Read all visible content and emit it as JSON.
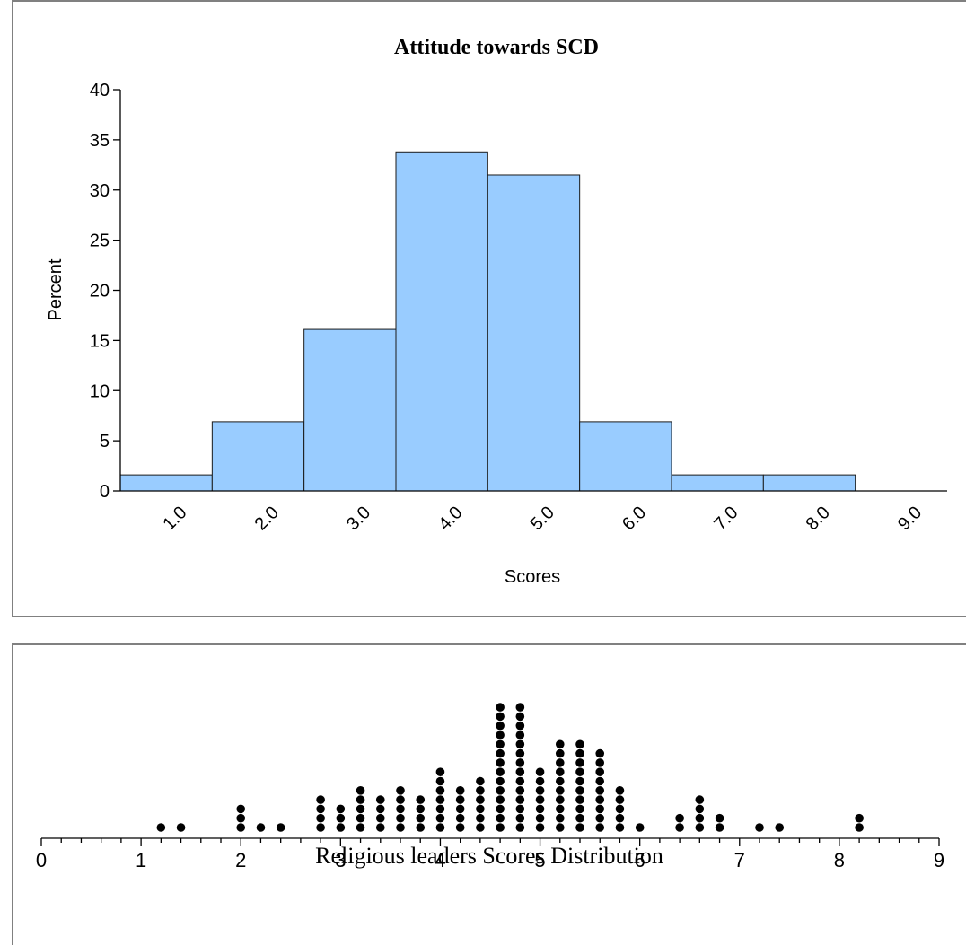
{
  "chart_data": [
    {
      "type": "bar",
      "title": "Attitude towards SCD",
      "xlabel": "Scores",
      "ylabel": "Percent",
      "ylim": [
        0,
        40
      ],
      "yticks": [
        "0",
        "5",
        "10",
        "15",
        "20",
        "25",
        "30",
        "35",
        "40"
      ],
      "categories": [
        "1.0",
        "2.0",
        "3.0",
        "4.0",
        "5.0",
        "6.0",
        "7.0",
        "8.0",
        "9.0"
      ],
      "values": [
        1.6,
        6.9,
        16.1,
        33.8,
        31.5,
        6.9,
        1.6,
        1.6,
        0
      ],
      "grid": false,
      "bar_color": "#99ccff"
    },
    {
      "type": "scatter",
      "subtype": "dot-plot",
      "xlabel": "Religious leaders Scores Distribution",
      "xlim": [
        0,
        9
      ],
      "xticks": [
        "0",
        "1",
        "2",
        "3",
        "4",
        "5",
        "6",
        "7",
        "8",
        "9"
      ],
      "points": [
        {
          "x": 1.2,
          "count": 1
        },
        {
          "x": 1.4,
          "count": 1
        },
        {
          "x": 2.0,
          "count": 3
        },
        {
          "x": 2.2,
          "count": 1
        },
        {
          "x": 2.4,
          "count": 1
        },
        {
          "x": 2.8,
          "count": 4
        },
        {
          "x": 3.0,
          "count": 3
        },
        {
          "x": 3.2,
          "count": 5
        },
        {
          "x": 3.4,
          "count": 4
        },
        {
          "x": 3.6,
          "count": 5
        },
        {
          "x": 3.8,
          "count": 4
        },
        {
          "x": 4.0,
          "count": 7
        },
        {
          "x": 4.2,
          "count": 5
        },
        {
          "x": 4.4,
          "count": 6
        },
        {
          "x": 4.6,
          "count": 14
        },
        {
          "x": 4.8,
          "count": 14
        },
        {
          "x": 5.0,
          "count": 7
        },
        {
          "x": 5.2,
          "count": 10
        },
        {
          "x": 5.4,
          "count": 10
        },
        {
          "x": 5.6,
          "count": 9
        },
        {
          "x": 5.8,
          "count": 5
        },
        {
          "x": 6.0,
          "count": 1
        },
        {
          "x": 6.4,
          "count": 2
        },
        {
          "x": 6.6,
          "count": 4
        },
        {
          "x": 6.8,
          "count": 2
        },
        {
          "x": 7.2,
          "count": 1
        },
        {
          "x": 7.4,
          "count": 1
        },
        {
          "x": 8.2,
          "count": 2
        }
      ]
    }
  ]
}
